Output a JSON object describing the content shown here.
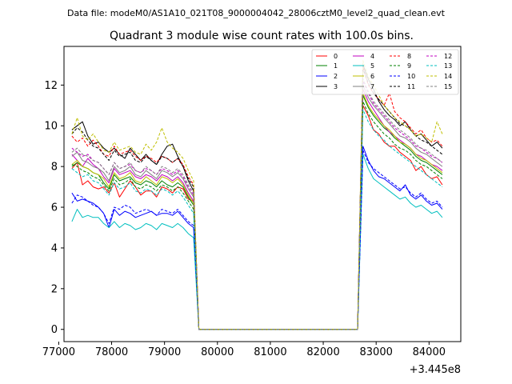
{
  "chart_data": {
    "type": "line",
    "suptitle": "Data file: modeM0/AS1A10_021T08_9000004042_28006cztM0_level2_quad_clean.evt",
    "title": "Quadrant 3 module wise count rates with 100.0s bins.",
    "xlabel": "",
    "ylabel": "",
    "x_offset_label": "+3.445e8",
    "xlim": [
      77100,
      84600
    ],
    "ylim": [
      -0.6,
      13.9
    ],
    "x_ticks": [
      77000,
      78000,
      79000,
      80000,
      81000,
      82000,
      83000,
      84000
    ],
    "x_tick_labels": [
      "77000",
      "78000",
      "79000",
      "80000",
      "81000",
      "82000",
      "83000",
      "84000"
    ],
    "y_ticks": [
      0,
      2,
      4,
      6,
      8,
      10,
      12
    ],
    "y_tick_labels": [
      "0",
      "2",
      "4",
      "6",
      "8",
      "10",
      "12"
    ],
    "grid": false,
    "legend_position": "top-right",
    "legend_columns": 4,
    "time_segments": {
      "seg1": {
        "start": 77250,
        "step": 100,
        "count": 24
      },
      "gap_zero": {
        "start": 79650,
        "end": 82650,
        "value": 0
      },
      "seg2": {
        "start": 82750,
        "step": 100,
        "count": 16
      }
    },
    "series": [
      {
        "name": "0",
        "color": "#ff0000",
        "dash": false,
        "seg1": [
          7.9,
          8.2,
          7.1,
          7.3,
          7.0,
          6.9,
          7.0,
          6.7,
          7.2,
          6.5,
          6.9,
          7.3,
          7.0,
          6.6,
          6.8,
          6.8,
          6.5,
          7.0,
          6.9,
          6.7,
          7.0,
          6.9,
          6.4,
          6.3
        ],
        "seg2": [
          11.0,
          10.5,
          9.8,
          9.6,
          9.2,
          9.0,
          9.0,
          8.7,
          8.5,
          8.3,
          7.8,
          8.0,
          7.6,
          7.4,
          7.5,
          7.1
        ]
      },
      {
        "name": "1",
        "color": "#008000",
        "dash": false,
        "seg1": [
          8.0,
          8.2,
          8.0,
          7.9,
          7.7,
          7.6,
          7.2,
          6.9,
          7.6,
          7.3,
          7.4,
          7.5,
          7.2,
          7.1,
          7.3,
          7.2,
          7.0,
          7.3,
          7.1,
          7.0,
          7.2,
          7.0,
          6.5,
          6.1
        ],
        "seg2": [
          11.5,
          10.9,
          10.5,
          10.2,
          9.9,
          9.7,
          9.4,
          9.2,
          9.0,
          8.8,
          8.5,
          8.3,
          8.2,
          8.0,
          7.8,
          7.6
        ]
      },
      {
        "name": "2",
        "color": "#0000ff",
        "dash": false,
        "seg1": [
          6.7,
          6.3,
          6.4,
          6.3,
          6.2,
          6.0,
          5.7,
          5.0,
          5.9,
          5.6,
          5.8,
          5.7,
          5.5,
          5.6,
          5.7,
          5.8,
          5.6,
          5.7,
          5.7,
          5.6,
          5.8,
          5.5,
          5.2,
          5.0
        ],
        "seg2": [
          9.0,
          8.3,
          7.8,
          7.5,
          7.4,
          7.2,
          7.0,
          6.8,
          7.1,
          6.6,
          6.4,
          6.6,
          6.3,
          6.1,
          6.2,
          5.9
        ]
      },
      {
        "name": "3",
        "color": "#000000",
        "dash": false,
        "seg1": [
          9.8,
          10.0,
          10.2,
          9.5,
          9.1,
          9.2,
          8.9,
          8.7,
          8.9,
          8.6,
          8.4,
          8.9,
          8.6,
          8.3,
          8.6,
          8.3,
          8.1,
          8.6,
          9.0,
          9.1,
          8.5,
          8.0,
          7.3,
          6.8
        ],
        "seg2": [
          13.0,
          12.3,
          11.8,
          11.2,
          10.8,
          10.5,
          10.3,
          10.0,
          10.2,
          9.8,
          9.5,
          9.6,
          9.3,
          9.0,
          9.2,
          8.9
        ]
      },
      {
        "name": "4",
        "color": "#c000c0",
        "dash": false,
        "seg1": [
          8.6,
          8.3,
          8.0,
          8.4,
          8.1,
          7.9,
          7.5,
          7.2,
          7.9,
          7.6,
          7.7,
          7.8,
          7.5,
          7.4,
          7.6,
          7.5,
          7.3,
          7.6,
          7.5,
          7.3,
          7.5,
          7.2,
          6.7,
          6.3
        ],
        "seg2": [
          11.8,
          11.2,
          10.8,
          10.4,
          10.0,
          9.7,
          9.5,
          9.3,
          9.1,
          8.9,
          8.6,
          8.5,
          8.3,
          8.1,
          8.0,
          7.8
        ]
      },
      {
        "name": "5",
        "color": "#00bfbf",
        "dash": false,
        "seg1": [
          5.3,
          5.9,
          5.5,
          5.6,
          5.5,
          5.5,
          5.2,
          5.0,
          5.3,
          5.0,
          5.2,
          5.1,
          4.9,
          5.0,
          5.2,
          5.1,
          4.9,
          5.2,
          5.1,
          5.0,
          5.2,
          5.0,
          4.7,
          4.5
        ],
        "seg2": [
          8.6,
          7.9,
          7.4,
          7.2,
          7.0,
          6.8,
          6.6,
          6.4,
          6.5,
          6.2,
          6.0,
          6.1,
          5.9,
          5.7,
          5.8,
          5.5
        ]
      },
      {
        "name": "6",
        "color": "#bfbf00",
        "dash": false,
        "seg1": [
          8.1,
          8.3,
          8.0,
          7.9,
          7.7,
          7.6,
          7.4,
          7.0,
          7.7,
          7.4,
          7.5,
          7.7,
          7.3,
          7.2,
          7.5,
          7.3,
          7.1,
          7.5,
          7.4,
          7.2,
          7.4,
          7.1,
          6.6,
          6.2
        ],
        "seg2": [
          11.6,
          11.0,
          10.6,
          10.3,
          10.0,
          9.8,
          9.5,
          9.2,
          9.1,
          8.9,
          8.6,
          8.4,
          8.3,
          8.1,
          7.9,
          7.7
        ]
      },
      {
        "name": "7",
        "color": "#808080",
        "dash": false,
        "seg1": [
          8.5,
          8.7,
          8.3,
          8.2,
          8.0,
          7.9,
          7.7,
          7.3,
          8.0,
          7.7,
          7.8,
          8.0,
          7.6,
          7.5,
          7.8,
          7.6,
          7.4,
          7.8,
          7.7,
          7.5,
          7.7,
          7.4,
          6.9,
          6.5
        ],
        "seg2": [
          12.0,
          11.4,
          11.0,
          10.7,
          10.4,
          10.1,
          9.8,
          9.5,
          9.4,
          9.2,
          8.9,
          8.7,
          8.6,
          8.4,
          8.2,
          8.0
        ]
      },
      {
        "name": "8",
        "color": "#ff0000",
        "dash": true,
        "seg1": [
          9.5,
          9.2,
          9.4,
          9.0,
          9.3,
          9.0,
          8.6,
          8.5,
          9.0,
          8.6,
          8.7,
          8.8,
          8.5,
          8.3,
          8.5,
          8.4,
          8.2,
          8.5,
          8.4,
          8.2,
          8.4,
          8.1,
          7.5,
          7.1
        ],
        "seg2": [
          12.9,
          12.0,
          11.6,
          11.3,
          11.0,
          11.6,
          10.7,
          10.4,
          10.2,
          9.9,
          9.6,
          9.8,
          9.4,
          9.2,
          9.3,
          9.0
        ]
      },
      {
        "name": "9",
        "color": "#008000",
        "dash": true,
        "seg1": [
          8.1,
          8.0,
          7.8,
          7.7,
          7.5,
          7.4,
          7.1,
          6.8,
          7.4,
          7.1,
          7.2,
          7.4,
          7.0,
          6.9,
          7.1,
          7.0,
          6.8,
          7.1,
          7.0,
          6.8,
          7.0,
          6.7,
          6.3,
          5.9
        ],
        "seg2": [
          11.2,
          10.6,
          10.2,
          9.9,
          9.6,
          9.4,
          9.1,
          8.9,
          8.8,
          8.6,
          8.3,
          8.1,
          8.0,
          7.8,
          7.6,
          7.4
        ]
      },
      {
        "name": "10",
        "color": "#0000ff",
        "dash": true,
        "seg1": [
          6.2,
          6.6,
          6.5,
          6.3,
          6.1,
          6.0,
          5.7,
          5.2,
          6.0,
          5.9,
          6.1,
          6.0,
          5.7,
          5.8,
          5.9,
          5.8,
          5.6,
          5.9,
          5.8,
          5.7,
          5.9,
          5.6,
          5.3,
          5.1
        ],
        "seg2": [
          8.8,
          8.2,
          7.9,
          7.7,
          7.5,
          7.3,
          7.1,
          6.9,
          7.0,
          6.7,
          6.5,
          6.7,
          6.4,
          6.2,
          6.3,
          6.0
        ]
      },
      {
        "name": "11",
        "color": "#000000",
        "dash": true,
        "seg1": [
          9.6,
          9.9,
          9.7,
          9.3,
          9.0,
          8.9,
          8.6,
          8.3,
          8.8,
          8.5,
          8.6,
          8.7,
          8.3,
          8.2,
          8.5,
          8.3,
          8.1,
          8.5,
          8.4,
          8.2,
          8.4,
          8.0,
          7.4,
          7.0
        ],
        "seg2": [
          12.8,
          12.1,
          11.6,
          11.3,
          11.0,
          10.7,
          10.4,
          10.1,
          10.0,
          9.8,
          9.5,
          9.3,
          9.2,
          9.0,
          8.8,
          8.6
        ]
      },
      {
        "name": "12",
        "color": "#c000c0",
        "dash": true,
        "seg1": [
          8.9,
          8.7,
          8.5,
          8.6,
          8.3,
          8.2,
          7.9,
          7.6,
          8.2,
          7.9,
          8.0,
          8.1,
          7.8,
          7.7,
          7.9,
          7.8,
          7.6,
          7.9,
          7.8,
          7.6,
          7.8,
          7.5,
          7.0,
          6.6
        ],
        "seg2": [
          12.2,
          11.6,
          11.1,
          10.8,
          10.5,
          10.2,
          9.9,
          9.7,
          9.5,
          9.3,
          9.0,
          8.9,
          8.7,
          8.5,
          8.4,
          8.2
        ]
      },
      {
        "name": "13",
        "color": "#00bfbf",
        "dash": true,
        "seg1": [
          7.9,
          7.7,
          7.5,
          7.6,
          7.3,
          7.2,
          6.9,
          6.6,
          7.2,
          6.9,
          7.0,
          7.2,
          6.8,
          6.7,
          6.9,
          6.8,
          6.6,
          6.9,
          6.8,
          6.6,
          6.8,
          6.5,
          6.1,
          5.7
        ],
        "seg2": [
          10.8,
          10.2,
          9.8,
          9.5,
          9.3,
          9.0,
          8.8,
          8.6,
          8.4,
          8.2,
          8.0,
          7.8,
          7.6,
          7.4,
          7.2,
          7.0
        ]
      },
      {
        "name": "14",
        "color": "#bfbf00",
        "dash": true,
        "seg1": [
          9.6,
          10.4,
          9.5,
          9.3,
          9.6,
          9.2,
          8.8,
          8.7,
          9.2,
          8.8,
          8.9,
          9.0,
          8.7,
          8.6,
          9.1,
          8.8,
          9.2,
          9.9,
          9.2,
          8.9,
          8.7,
          8.4,
          7.8,
          7.3
        ],
        "seg2": [
          13.2,
          12.4,
          12.0,
          11.5,
          11.0,
          10.7,
          10.4,
          10.2,
          10.0,
          9.8,
          9.5,
          9.6,
          9.4,
          9.2,
          10.2,
          9.6
        ]
      },
      {
        "name": "15",
        "color": "#808080",
        "dash": true,
        "seg1": [
          8.7,
          8.9,
          8.6,
          8.5,
          8.3,
          8.2,
          7.9,
          7.6,
          8.2,
          7.9,
          8.0,
          8.2,
          7.8,
          7.7,
          8.0,
          7.8,
          7.6,
          8.0,
          7.9,
          7.7,
          7.9,
          7.6,
          7.1,
          6.7
        ],
        "seg2": [
          12.3,
          11.7,
          11.2,
          10.9,
          10.6,
          10.3,
          10.0,
          9.8,
          9.6,
          9.4,
          9.1,
          8.9,
          8.8,
          8.6,
          8.4,
          8.2
        ]
      }
    ]
  }
}
